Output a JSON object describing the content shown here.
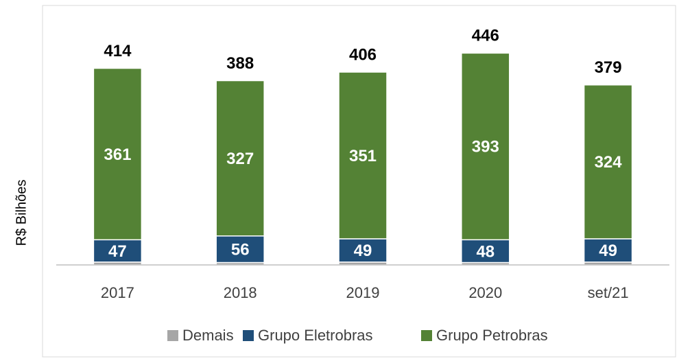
{
  "chart_data": {
    "type": "bar",
    "stacked": true,
    "y_label": "R$ Bilhões",
    "categories": [
      "2017",
      "2018",
      "2019",
      "2020",
      "set/21"
    ],
    "series": [
      {
        "name": "Demais",
        "color": "#a6a6a6",
        "values": [
          6,
          5,
          6,
          5,
          6
        ]
      },
      {
        "name": "Grupo Eletrobras",
        "color": "#1f4e79",
        "values": [
          47,
          56,
          49,
          48,
          49
        ]
      },
      {
        "name": "Grupo Petrobras",
        "color": "#548235",
        "values": [
          361,
          327,
          351,
          393,
          324
        ]
      }
    ],
    "totals": [
      414,
      388,
      406,
      446,
      379
    ],
    "ylim": [
      0,
      500
    ],
    "legend": "bottom"
  }
}
